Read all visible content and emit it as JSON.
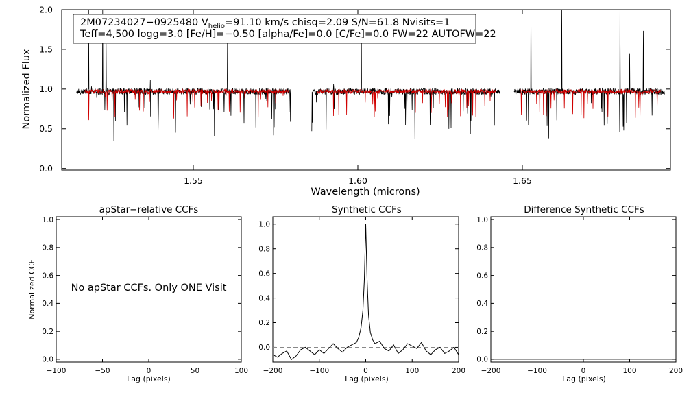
{
  "chart_data": [
    {
      "type": "line",
      "title": "",
      "xlabel": "Wavelength (microns)",
      "ylabel": "Normalized Flux",
      "xlim": [
        1.51,
        1.695
      ],
      "ylim": [
        -0.02,
        2.0
      ],
      "x_ticks": [
        1.55,
        1.6,
        1.65
      ],
      "x_tick_labels": [
        "1.55",
        "1.60",
        "1.65"
      ],
      "y_ticks": [
        0.0,
        0.5,
        1.0,
        1.5,
        2.0
      ],
      "y_tick_labels": [
        "0.0",
        "0.5",
        "1.0",
        "1.5",
        "2.0"
      ],
      "annotation": {
        "line1_prefix": "2M07234027−0925480  V",
        "line1_sub": "helio",
        "line1_suffix": "=91.10 km/s  chisq=2.09  S/N=61.8  Nvisits=1",
        "line2": "Teff=4,500 logg=3.0 [Fe/H]=−0.50 [alpha/Fe]=0.0 [C/Fe]=0.0 FW=22 AUTOFW=22"
      },
      "series": [
        {
          "color": "#000000",
          "segments": [
            [
              1.5145,
              1.5797
            ],
            [
              1.586,
              1.6432
            ],
            [
              1.6475,
              1.6932
            ]
          ],
          "level": 0.97
        },
        {
          "color": "#d00000",
          "segments": [
            [
              1.517,
              1.579
            ],
            [
              1.5875,
              1.642
            ],
            [
              1.6495,
              1.692
            ]
          ],
          "level": 0.97
        }
      ]
    },
    {
      "type": "line",
      "title": "apStar−relative CCFs",
      "xlabel": "Lag (pixels)",
      "ylabel": "Normalized CCF",
      "xlim": [
        -100,
        100
      ],
      "ylim": [
        -0.02,
        1.02
      ],
      "x_ticks": [
        -100,
        -50,
        0,
        50,
        100
      ],
      "x_tick_labels": [
        "−100",
        "−50",
        "0",
        "50",
        "100"
      ],
      "y_ticks": [
        0.0,
        0.2,
        0.4,
        0.6,
        0.8,
        1.0
      ],
      "y_tick_labels": [
        "0.0",
        "0.2",
        "0.4",
        "0.6",
        "0.8",
        "1.0"
      ],
      "message": "No apStar CCFs.  Only ONE Visit",
      "series": []
    },
    {
      "type": "line",
      "title": "Synthetic CCFs",
      "xlabel": "Lag (pixels)",
      "ylabel": "",
      "xlim": [
        -200,
        200
      ],
      "ylim": [
        -0.12,
        1.06
      ],
      "x_ticks": [
        -200,
        -100,
        0,
        100,
        200
      ],
      "x_tick_labels": [
        "−200",
        "−100",
        "0",
        "100",
        "200"
      ],
      "y_ticks": [
        0.0,
        0.2,
        0.4,
        0.6,
        0.8,
        1.0
      ],
      "y_tick_labels": [
        "0.0",
        "0.2",
        "0.4",
        "0.6",
        "0.8",
        "1.0"
      ],
      "reference_line": 0.0,
      "series": [
        {
          "color": "#000000",
          "x": [
            -200,
            -190,
            -180,
            -170,
            -160,
            -150,
            -140,
            -130,
            -120,
            -110,
            -100,
            -90,
            -80,
            -70,
            -60,
            -50,
            -40,
            -30,
            -20,
            -15,
            -10,
            -6,
            -3,
            0,
            3,
            6,
            10,
            15,
            20,
            30,
            40,
            50,
            60,
            70,
            80,
            90,
            100,
            110,
            120,
            130,
            140,
            150,
            160,
            170,
            180,
            190,
            200
          ],
          "y": [
            -0.06,
            -0.08,
            -0.05,
            -0.03,
            -0.1,
            -0.07,
            -0.02,
            0.0,
            -0.03,
            -0.06,
            -0.02,
            -0.05,
            -0.01,
            0.03,
            -0.01,
            -0.04,
            0.0,
            0.02,
            0.04,
            0.08,
            0.16,
            0.3,
            0.55,
            1.0,
            0.55,
            0.26,
            0.12,
            0.06,
            0.03,
            0.05,
            -0.01,
            -0.03,
            0.02,
            -0.05,
            -0.02,
            0.03,
            0.01,
            -0.01,
            0.04,
            -0.03,
            -0.06,
            -0.02,
            0.0,
            -0.05,
            -0.03,
            0.0,
            -0.06
          ]
        }
      ]
    },
    {
      "type": "line",
      "title": "Difference Synthetic CCFs",
      "xlabel": "Lag (pixels)",
      "ylabel": "",
      "xlim": [
        -200,
        200
      ],
      "ylim": [
        -0.02,
        1.02
      ],
      "x_ticks": [
        -200,
        -100,
        0,
        100,
        200
      ],
      "x_tick_labels": [
        "−200",
        "−100",
        "0",
        "100",
        "200"
      ],
      "y_ticks": [
        0.0,
        0.2,
        0.4,
        0.6,
        0.8,
        1.0
      ],
      "y_tick_labels": [
        "0.0",
        "0.2",
        "0.4",
        "0.6",
        "0.8",
        "1.0"
      ],
      "series": [
        {
          "color": "#000000",
          "x": [
            -200,
            200
          ],
          "y": [
            0.0,
            0.0
          ]
        }
      ]
    }
  ]
}
